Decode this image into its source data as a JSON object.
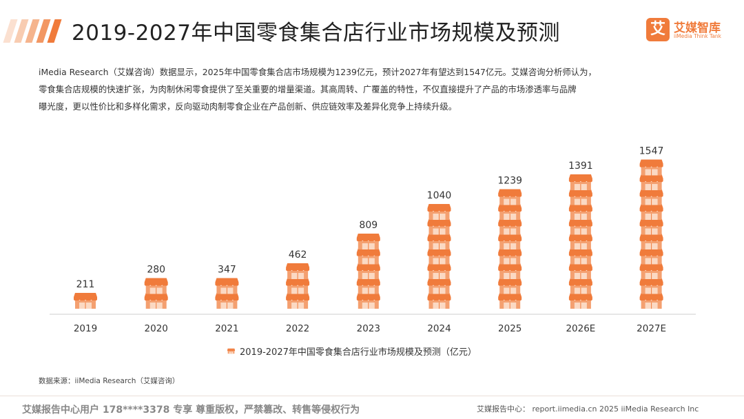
{
  "header": {
    "title": "2019-2027年中国零食集合店行业市场规模及预测"
  },
  "logo": {
    "mark": "艾",
    "name": "艾媒智库",
    "subtitle": "iiMedia Think Tank"
  },
  "description": {
    "line1": "iMedia Research（艾媒咨询）数据显示，2025年中国零食集合店市场规模为1239亿元，预计2027年有望达到1547亿元。艾媒咨询分析师认为，",
    "line2": "零食集合店规模的快速扩张，为肉制休闲零食提供了至关重要的增量渠道。其高周转、广覆盖的特性，不仅直接提升了产品的市场渗透率与品牌",
    "line3": "曝光度，更以性价比和多样化需求，反向驱动肉制零食企业在产品创新、供应链效率及差异化竞争上持续升级。"
  },
  "chart_data": {
    "type": "bar",
    "title": "2019-2027年中国零食集合店行业市场规模及预测（亿元）",
    "categories": [
      "2019",
      "2020",
      "2021",
      "2022",
      "2023",
      "2024",
      "2025",
      "2026E",
      "2027E"
    ],
    "values": [
      211,
      280,
      347,
      462,
      809,
      1040,
      1239,
      1391,
      1547
    ],
    "series": [
      {
        "name": "2019-2027年中国零食集合店行业市场规模及预测（亿元）",
        "values": [
          211,
          280,
          347,
          462,
          809,
          1040,
          1239,
          1391,
          1547
        ]
      }
    ],
    "xlabel": "",
    "ylabel": "",
    "ylim": [
      0,
      1600
    ],
    "grid": false,
    "legend_position": "bottom",
    "color": "#f07b3b",
    "mark_style": "stacked storefront icons"
  },
  "legend": {
    "label": "2019-2027年中国零食集合店行业市场规模及预测（亿元）"
  },
  "source": {
    "text": "数据来源：iiMedia Research（艾媒咨询）"
  },
  "footer": {
    "left": "艾媒报告中心用户 178****3378 专享 尊重版权，严禁篡改、转售等侵权行为",
    "right": "艾媒报告中心： report.iimedia.cn   2025 iiMedia Research Inc"
  },
  "colors": {
    "accent": "#f07b3b",
    "stripe_light": "#f7c9ad",
    "stripe_mid": "#f3a779"
  }
}
